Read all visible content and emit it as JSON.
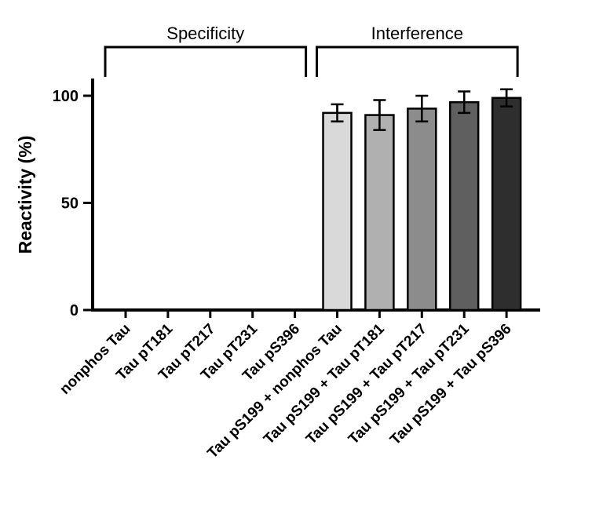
{
  "figure": {
    "background_color": "#ffffff",
    "axis_color": "#000000",
    "text_color": "#000000"
  },
  "chart_data": {
    "type": "bar",
    "title": "",
    "xlabel": "",
    "ylabel": "Reactivity (%)",
    "ylim": [
      0,
      108
    ],
    "yticks": [
      0,
      50,
      100
    ],
    "grid": false,
    "legend": "none",
    "categories": [
      "nonphos Tau",
      "Tau pT181",
      "Tau pT217",
      "Tau pT231",
      "Tau pS396",
      "Tau pS199 + nonphos Tau",
      "Tau pS199 + Tau pT181",
      "Tau pS199 + Tau pT217",
      "Tau pS199 + Tau pT231",
      "Tau pS199 + Tau pS396"
    ],
    "values": [
      0,
      0,
      0,
      0,
      0,
      92,
      91,
      94,
      97,
      99
    ],
    "errors": [
      0,
      0,
      0,
      0,
      0,
      4,
      7,
      6,
      5,
      4
    ],
    "bar_colors": [
      "#ffffff",
      "#ffffff",
      "#ffffff",
      "#ffffff",
      "#ffffff",
      "#d9d9d9",
      "#b0b0b0",
      "#8c8c8c",
      "#5f5f5f",
      "#2e2e2e"
    ],
    "groups": [
      {
        "label": "Specificity",
        "start": 0,
        "end": 4
      },
      {
        "label": "Interference",
        "start": 5,
        "end": 9
      }
    ]
  }
}
